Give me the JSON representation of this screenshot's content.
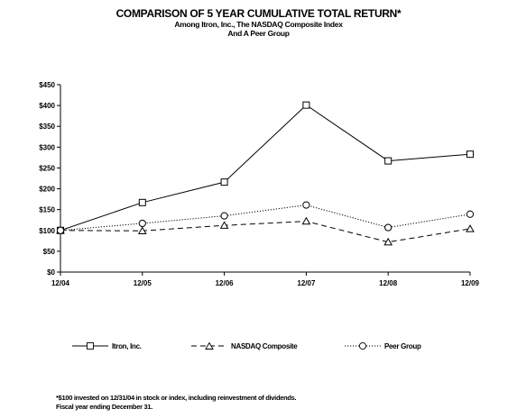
{
  "header": {
    "title": "COMPARISON OF 5 YEAR CUMULATIVE TOTAL RETURN*",
    "subtitle_line1": "Among Itron, Inc., The NASDAQ Composite Index",
    "subtitle_line2": "And A Peer Group"
  },
  "chart_data": {
    "type": "line",
    "categories": [
      "12/04",
      "12/05",
      "12/06",
      "12/07",
      "12/08",
      "12/09"
    ],
    "ylim": [
      0,
      450
    ],
    "y_ticks": [
      0,
      50,
      100,
      150,
      200,
      250,
      300,
      350,
      400,
      450
    ],
    "y_tick_labels": [
      "$0",
      "$50",
      "$100",
      "$150",
      "$200",
      "$250",
      "$300",
      "$350",
      "$400",
      "$450"
    ],
    "grid": false,
    "legend_position": "bottom",
    "series": [
      {
        "name": "Itron, Inc.",
        "marker": "square",
        "line_style": "solid",
        "color": "#000000",
        "values": [
          100,
          167,
          216,
          401,
          267,
          283
        ]
      },
      {
        "name": "NASDAQ Composite",
        "marker": "triangle",
        "line_style": "dashed",
        "color": "#000000",
        "values": [
          100,
          99,
          112,
          122,
          72,
          104
        ]
      },
      {
        "name": "Peer Group",
        "marker": "circle",
        "line_style": "dotted",
        "color": "#000000",
        "values": [
          100,
          117,
          135,
          161,
          107,
          139
        ]
      }
    ]
  },
  "footnotes": {
    "line1": "*$100 invested on 12/31/04 in stock or index, including reinvestment of dividends.",
    "line2": "Fiscal year ending December 31."
  }
}
